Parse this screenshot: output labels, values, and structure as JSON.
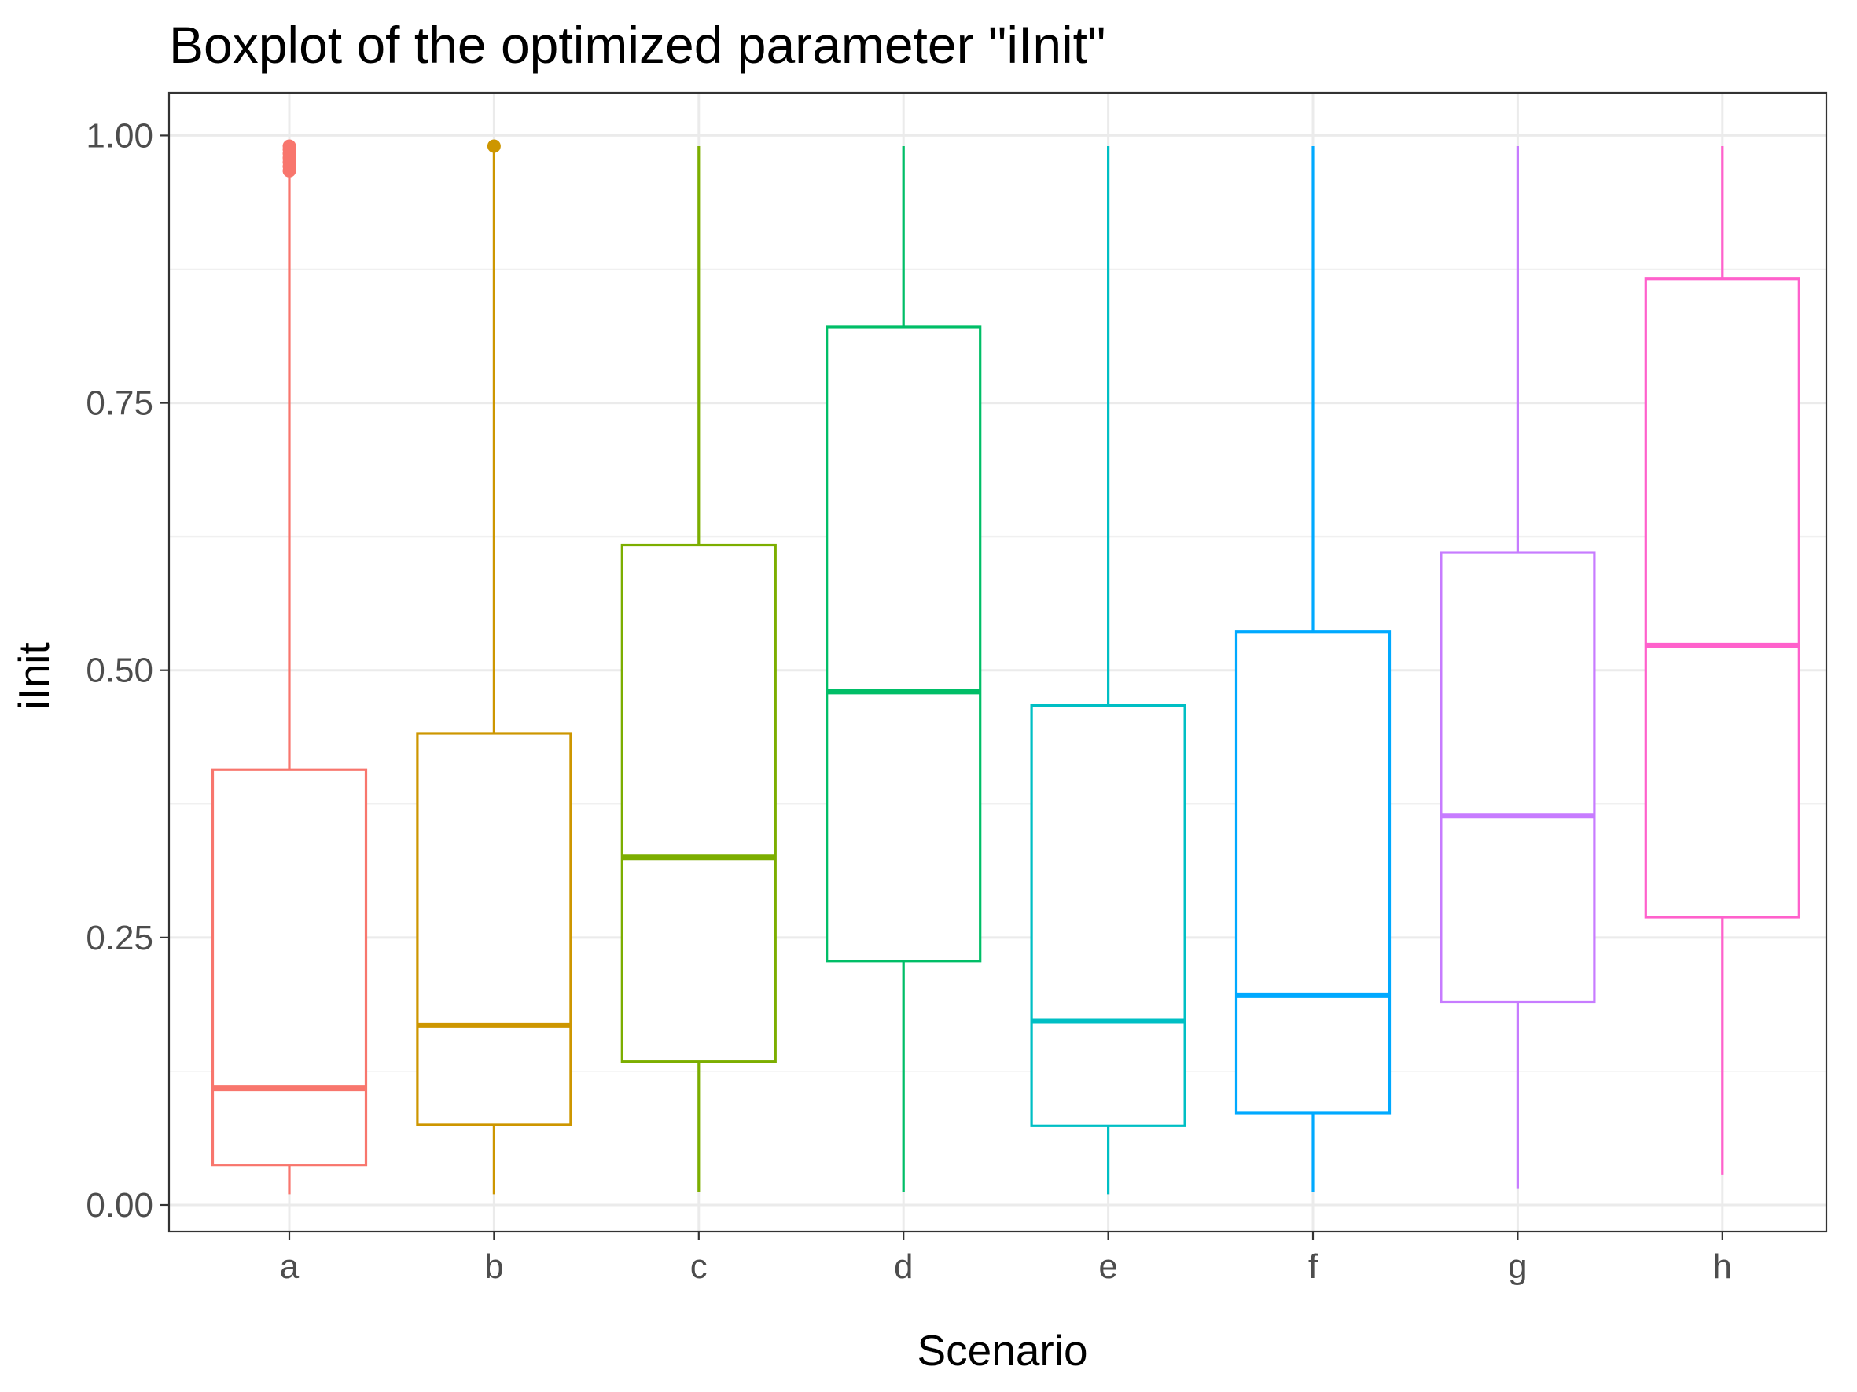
{
  "chart_data": {
    "type": "boxplot",
    "title": "Boxplot of the optimized parameter \"iInit\"",
    "xlabel": "Scenario",
    "ylabel": "iInit",
    "ylim": [
      -0.025,
      1.04
    ],
    "y_ticks": [
      0.0,
      0.25,
      0.5,
      0.75,
      1.0
    ],
    "y_tick_labels": [
      "0.00",
      "0.25",
      "0.50",
      "0.75",
      "1.00"
    ],
    "grid": true,
    "legend": "none",
    "categories": [
      "a",
      "b",
      "c",
      "d",
      "e",
      "f",
      "g",
      "h"
    ],
    "boxes": [
      {
        "category": "a",
        "color": "#F8766D",
        "min": 0.01,
        "q1": 0.037,
        "median": 0.109,
        "q3": 0.407,
        "max": 0.962,
        "outliers": [
          0.967,
          0.971,
          0.975,
          0.979,
          0.983,
          0.987,
          0.99
        ]
      },
      {
        "category": "b",
        "color": "#CD9600",
        "min": 0.01,
        "q1": 0.075,
        "median": 0.168,
        "q3": 0.441,
        "max": 0.99,
        "outliers": [
          0.99
        ]
      },
      {
        "category": "c",
        "color": "#7CAE00",
        "min": 0.012,
        "q1": 0.134,
        "median": 0.325,
        "q3": 0.617,
        "max": 0.99,
        "outliers": []
      },
      {
        "category": "d",
        "color": "#00BE67",
        "min": 0.012,
        "q1": 0.228,
        "median": 0.48,
        "q3": 0.821,
        "max": 0.99,
        "outliers": []
      },
      {
        "category": "e",
        "color": "#00BFC4",
        "min": 0.01,
        "q1": 0.074,
        "median": 0.172,
        "q3": 0.467,
        "max": 0.99,
        "outliers": []
      },
      {
        "category": "f",
        "color": "#00A9FF",
        "min": 0.012,
        "q1": 0.086,
        "median": 0.196,
        "q3": 0.536,
        "max": 0.99,
        "outliers": []
      },
      {
        "category": "g",
        "color": "#C77CFF",
        "min": 0.015,
        "q1": 0.19,
        "median": 0.364,
        "q3": 0.61,
        "max": 0.99,
        "outliers": []
      },
      {
        "category": "h",
        "color": "#FF61CC",
        "min": 0.028,
        "q1": 0.269,
        "median": 0.523,
        "q3": 0.866,
        "max": 0.99,
        "outliers": []
      }
    ]
  }
}
